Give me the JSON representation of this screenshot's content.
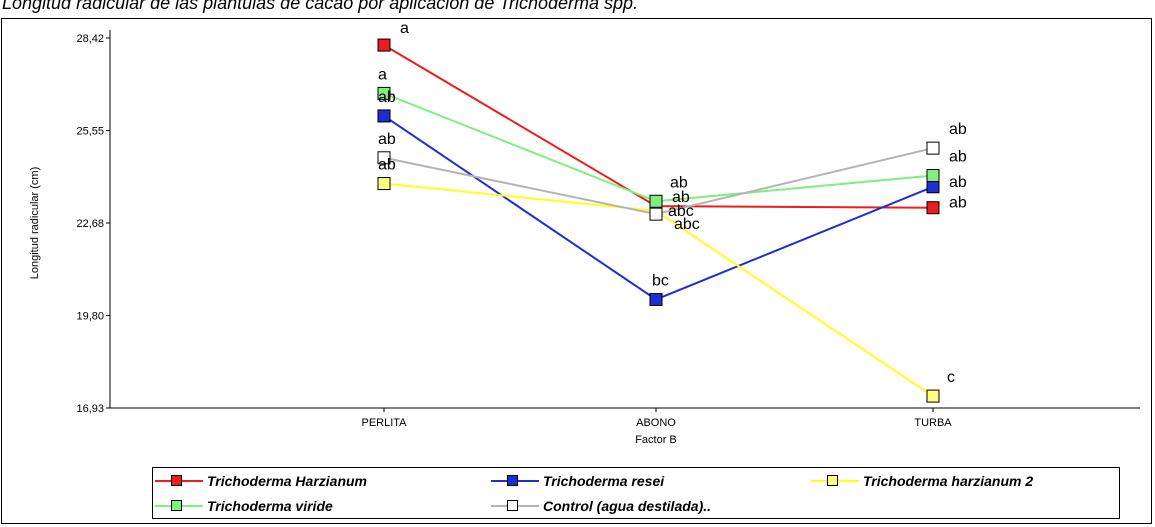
{
  "title": "Longitud radicular de las plántulas de cacao por aplicación de Trichoderma spp.",
  "chart_data": {
    "type": "line",
    "title": "Longitud radicular de las plántulas de cacao por aplicación de Trichoderma spp.",
    "xlabel": "Factor B",
    "ylabel": "Longitud radicular (cm)",
    "categories": [
      "PERLITA",
      "ABONO",
      "TURBA"
    ],
    "yticks": [
      "28,42",
      "25,55",
      "22,68",
      "19,80",
      "16,93"
    ],
    "ylim": [
      16.93,
      28.42
    ],
    "grid": false,
    "legend_position": "bottom",
    "series": [
      {
        "name": "Trichoderma Harzianum",
        "color": "#ee1c1c",
        "marker_color": "#ee1c1c",
        "values": [
          28.2,
          23.2,
          23.15
        ],
        "labels": [
          "a",
          "ab",
          "ab"
        ]
      },
      {
        "name": "Trichoderma resei",
        "color": "#1f2dd4",
        "marker_color": "#1f2dd4",
        "values": [
          26.0,
          20.3,
          23.8
        ],
        "labels": [
          "ab",
          "bc",
          "ab"
        ]
      },
      {
        "name": "Trichoderma harzianum 2",
        "color": "#ffff1a",
        "marker_color": "#ffff80",
        "values": [
          23.9,
          23.05,
          17.3
        ],
        "labels": [
          "ab",
          "abc",
          "c"
        ]
      },
      {
        "name": "Trichoderma viride",
        "color": "#7fef7f",
        "marker_color": "#7fef7f",
        "values": [
          26.7,
          23.35,
          24.15
        ],
        "labels": [
          "a",
          "ab",
          "ab"
        ]
      },
      {
        "name": "Control (agua destilada)..",
        "color": "#b4b4b4",
        "marker_color": "#ffffff",
        "values": [
          24.7,
          22.95,
          25.0
        ],
        "labels": [
          "ab",
          "abc",
          "ab"
        ]
      }
    ]
  }
}
